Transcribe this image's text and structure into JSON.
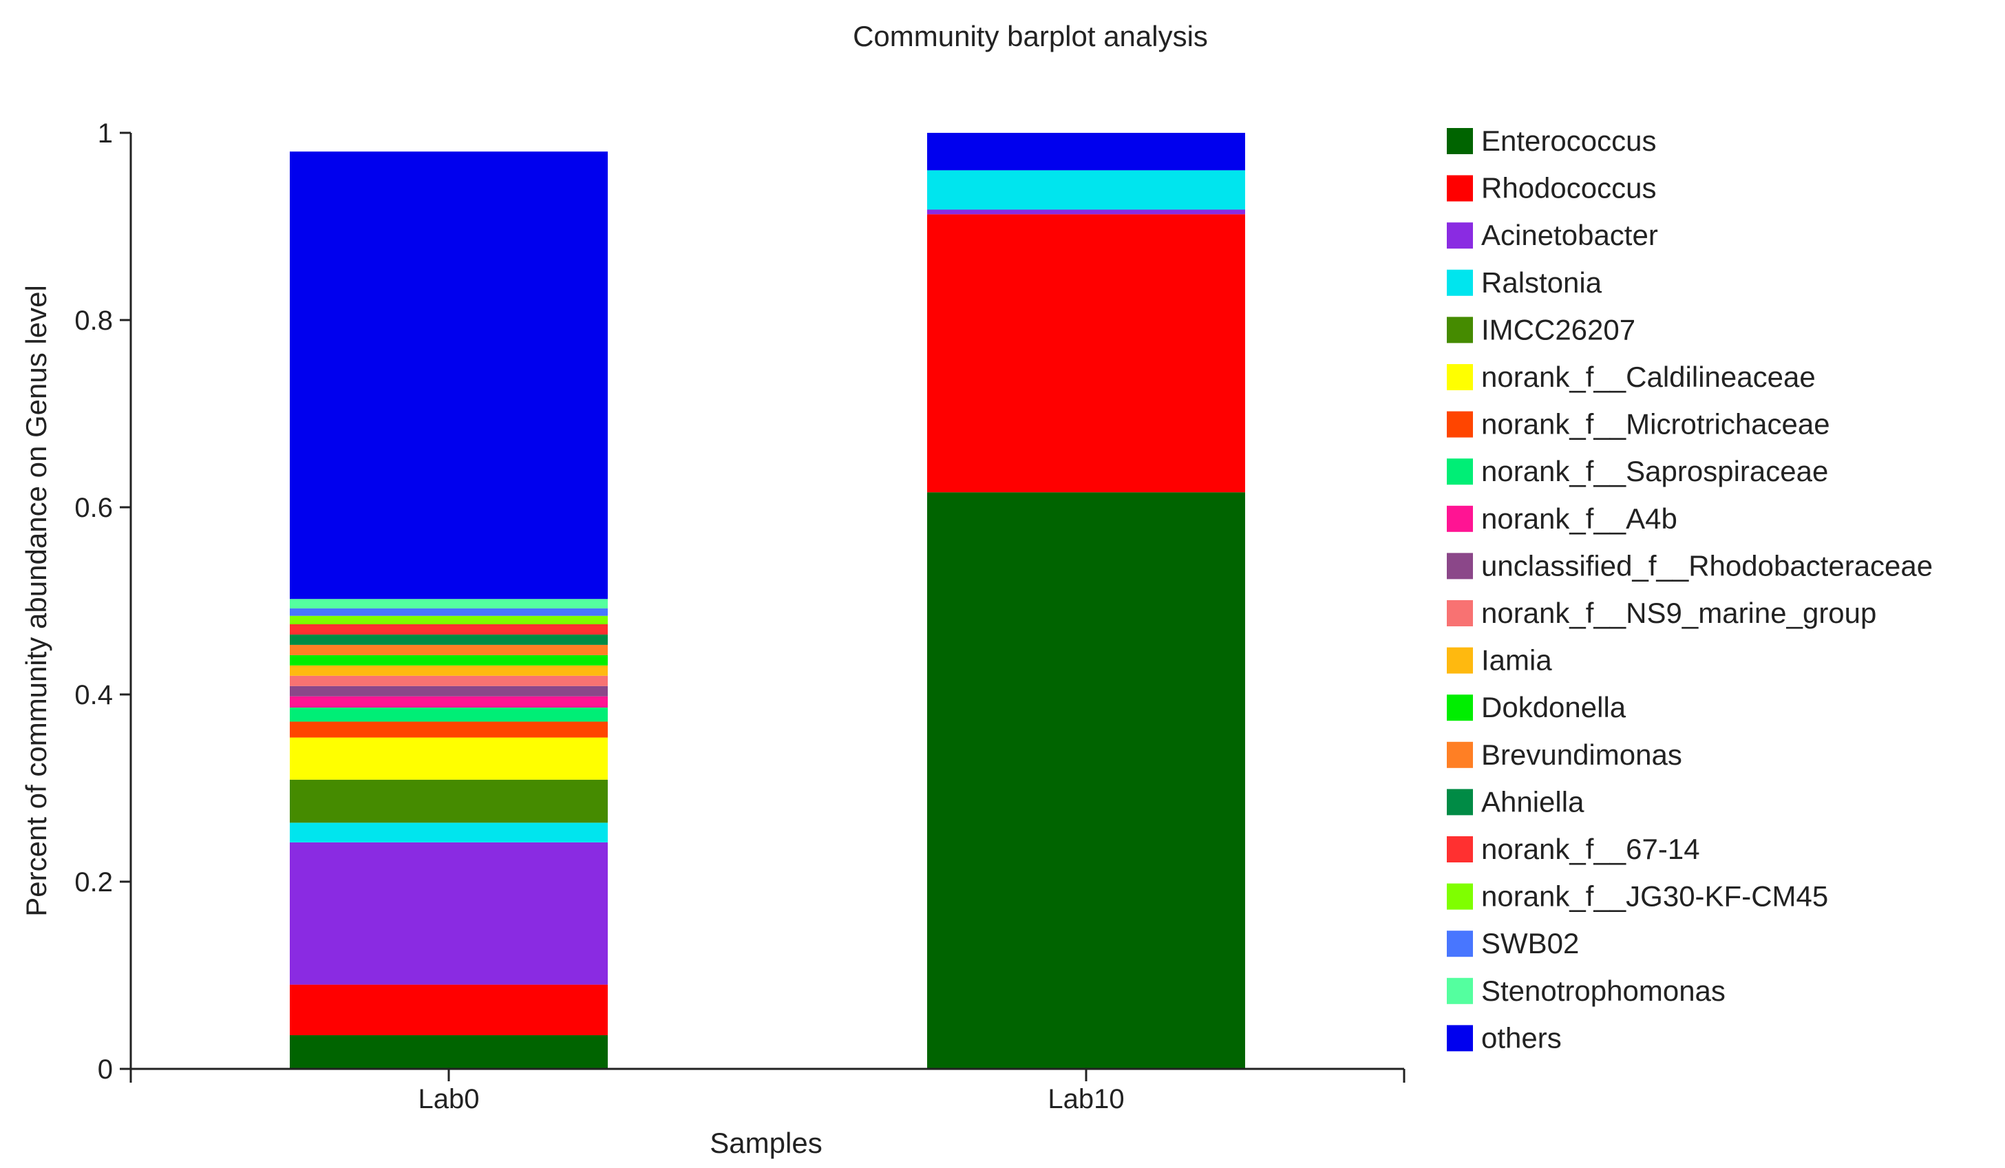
{
  "chart_data": {
    "type": "bar",
    "stacked": true,
    "title": "Community barplot analysis",
    "xlabel": "Samples",
    "ylabel": "Percent of community abundance on Genus level",
    "ylim": [
      0,
      1
    ],
    "yticks": [
      "0",
      "0.2",
      "0.4",
      "0.6",
      "0.8",
      "1"
    ],
    "categories": [
      "Lab0",
      "Lab10"
    ],
    "legend_position": "right",
    "series": [
      {
        "name": "Enterococcus",
        "color": "#006400",
        "values": [
          0.036,
          0.616
        ]
      },
      {
        "name": "Rhodococcus",
        "color": "#ff0000",
        "values": [
          0.054,
          0.297
        ]
      },
      {
        "name": "Acinetobacter",
        "color": "#8a2be2",
        "values": [
          0.152,
          0.005
        ]
      },
      {
        "name": "Ralstonia",
        "color": "#00e5ee",
        "values": [
          0.021,
          0.042
        ]
      },
      {
        "name": "IMCC26207",
        "color": "#458b00",
        "values": [
          0.046,
          0.0
        ]
      },
      {
        "name": "norank_f__Caldilineaceae",
        "color": "#ffff00",
        "values": [
          0.045,
          0.0
        ]
      },
      {
        "name": "norank_f__Microtrichaceae",
        "color": "#ff4500",
        "values": [
          0.017,
          0.0
        ]
      },
      {
        "name": "norank_f__Saprospiraceae",
        "color": "#00ee76",
        "values": [
          0.015,
          0.0
        ]
      },
      {
        "name": "norank_f__A4b",
        "color": "#ff1493",
        "values": [
          0.012,
          0.0
        ]
      },
      {
        "name": "unclassified_f__Rhodobacteraceae",
        "color": "#8b4789",
        "values": [
          0.011,
          0.0
        ]
      },
      {
        "name": "norank_f__NS9_marine_group",
        "color": "#f87272",
        "values": [
          0.011,
          0.0
        ]
      },
      {
        "name": "Iamia",
        "color": "#ffb90f",
        "values": [
          0.011,
          0.0
        ]
      },
      {
        "name": "Dokdonella",
        "color": "#00ee00",
        "values": [
          0.011,
          0.0
        ]
      },
      {
        "name": "Brevundimonas",
        "color": "#ff7f24",
        "values": [
          0.011,
          0.0
        ]
      },
      {
        "name": "Ahniella",
        "color": "#008b45",
        "values": [
          0.011,
          0.0
        ]
      },
      {
        "name": "norank_f__67-14",
        "color": "#ff3030",
        "values": [
          0.011,
          0.0
        ]
      },
      {
        "name": "norank_f__JG30-KF-CM45",
        "color": "#7fff00",
        "values": [
          0.009,
          0.0
        ]
      },
      {
        "name": "SWB02",
        "color": "#4876ff",
        "values": [
          0.008,
          0.0
        ]
      },
      {
        "name": "Stenotrophomonas",
        "color": "#54ff9f",
        "values": [
          0.01,
          0.0
        ]
      },
      {
        "name": "others",
        "color": "#0000ee",
        "values": [
          0.478,
          0.04
        ]
      }
    ]
  }
}
